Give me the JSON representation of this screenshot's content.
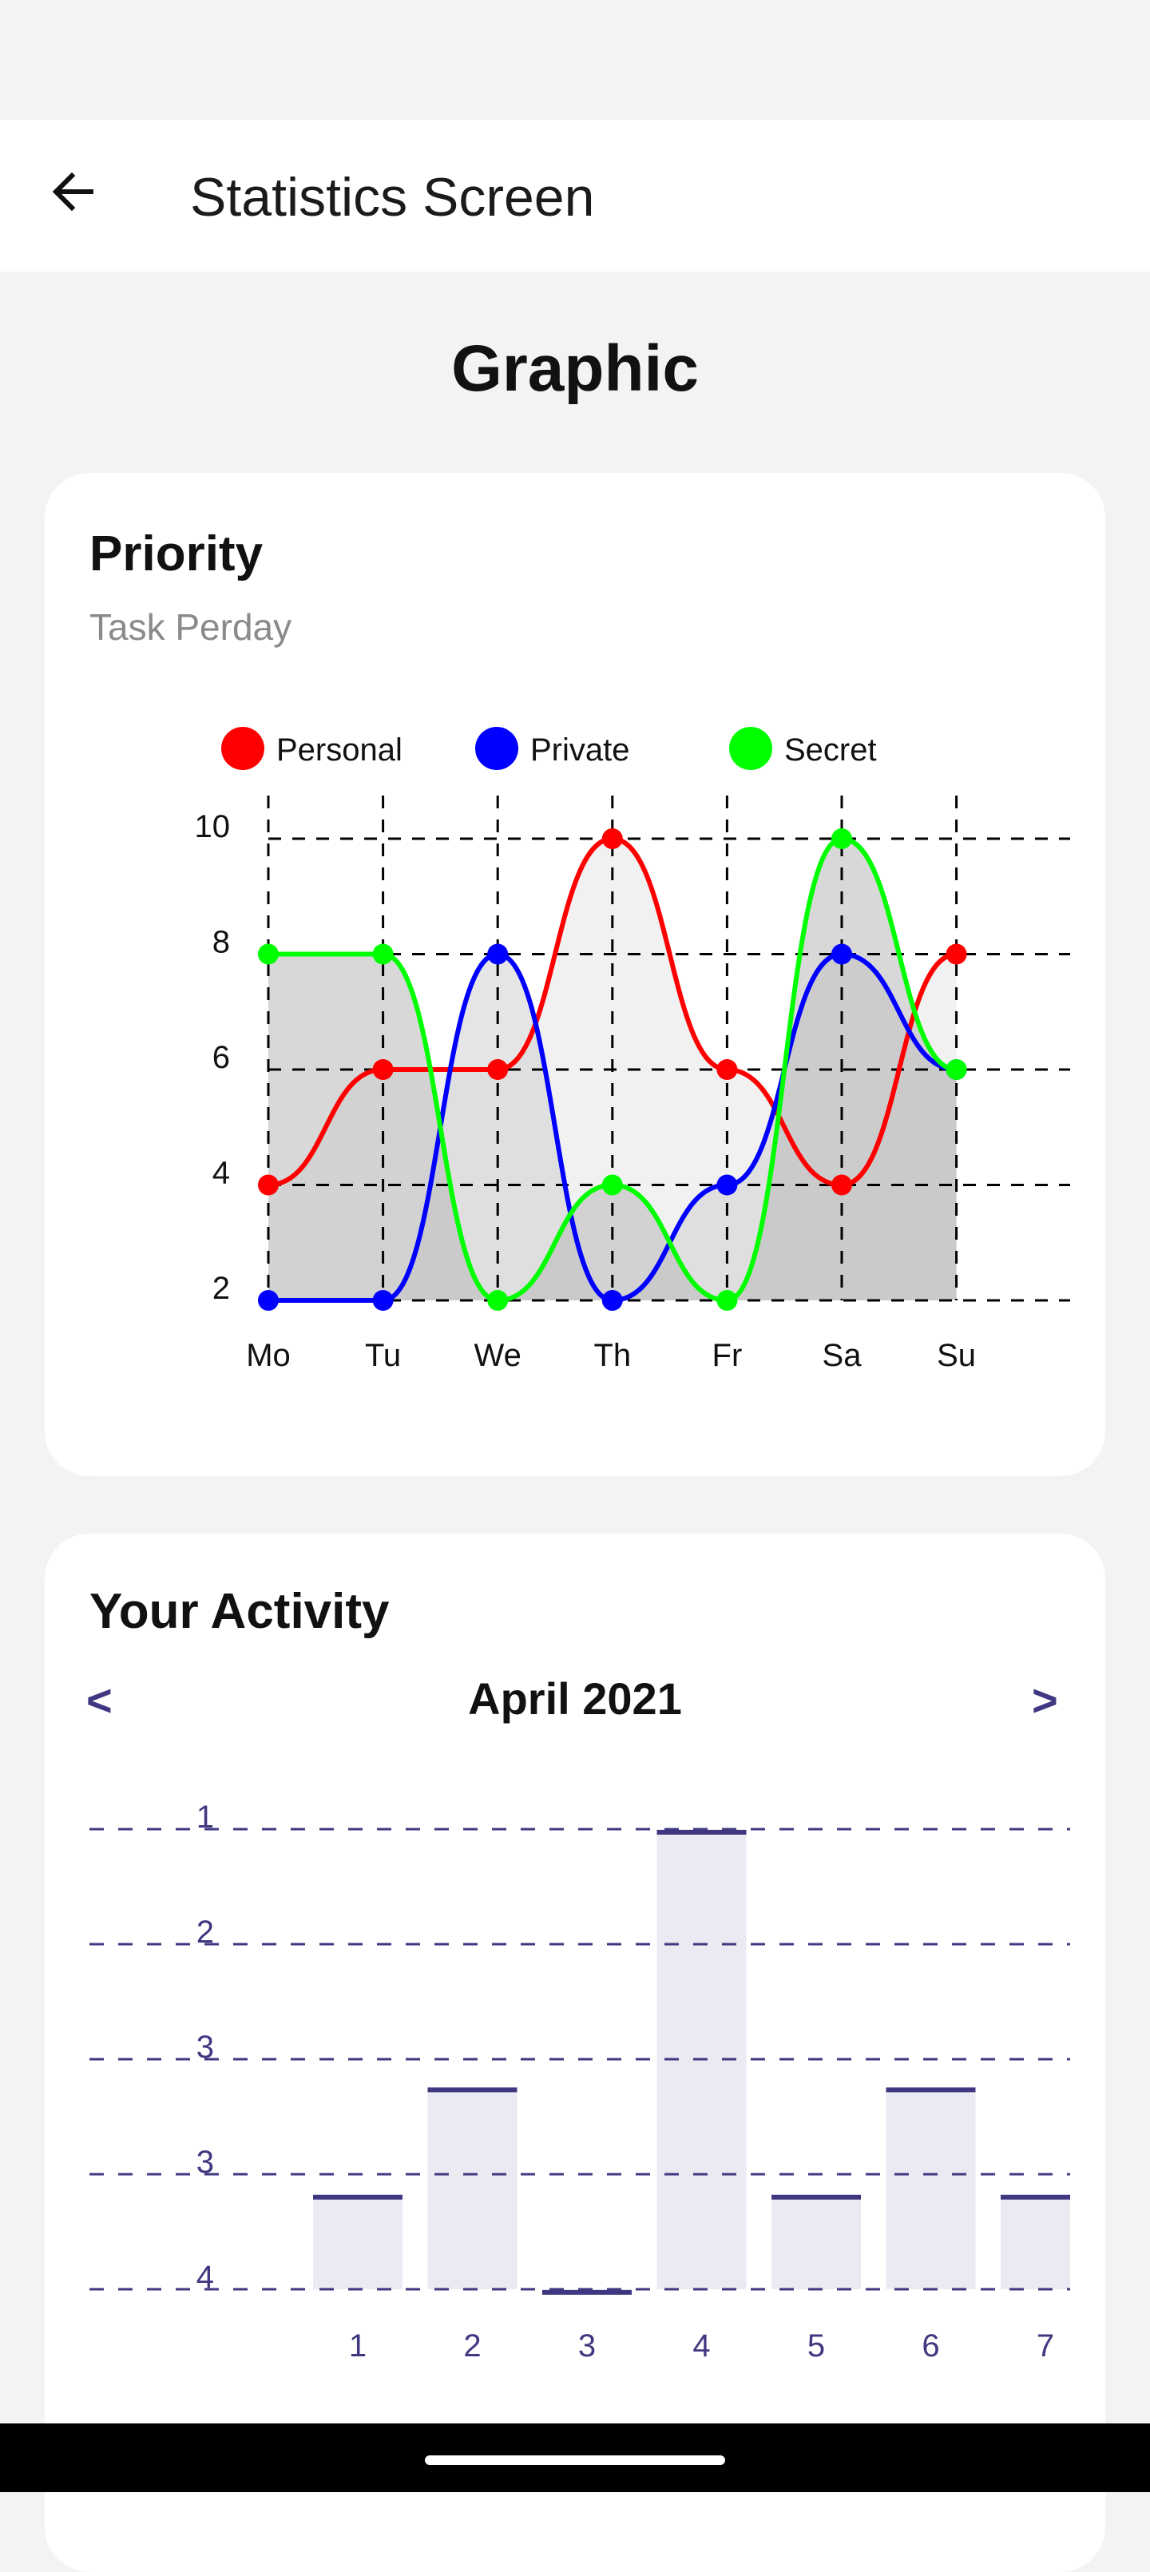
{
  "app_bar": {
    "title": "Statistics Screen",
    "back_icon": "arrow-left-icon"
  },
  "section_title": "Graphic",
  "priority_card": {
    "title": "Priority",
    "subtitle": "Task Perday",
    "chart_data": {
      "type": "line",
      "categories": [
        "Mo",
        "Tu",
        "We",
        "Th",
        "Fr",
        "Sa",
        "Su"
      ],
      "y_ticks": [
        "2",
        "4",
        "6",
        "8",
        "10"
      ],
      "ylim": [
        2,
        10
      ],
      "grid": true,
      "legend_position": "top",
      "series": [
        {
          "name": "Personal",
          "color": "#ff0000",
          "values": [
            4,
            6,
            6,
            10,
            6,
            4,
            8
          ]
        },
        {
          "name": "Private",
          "color": "#0000ff",
          "values": [
            2,
            2,
            8,
            2,
            4,
            8,
            6
          ]
        },
        {
          "name": "Secret",
          "color": "#00ff00",
          "values": [
            8,
            8,
            2,
            4,
            2,
            10,
            6
          ]
        }
      ]
    }
  },
  "activity_card": {
    "title": "Your Activity",
    "prev_label": "<",
    "next_label": ">",
    "month": "April 2021",
    "chart_data": {
      "type": "bar",
      "categories": [
        "1",
        "2",
        "3",
        "4",
        "5",
        "6",
        "7"
      ],
      "y_ticks": [
        "1",
        "2",
        "3",
        "3",
        "4"
      ],
      "values": [
        1.6,
        2.3,
        0.98,
        3.98,
        1.6,
        2.3,
        1.6
      ],
      "ylim": [
        1,
        4
      ],
      "grid": true,
      "bar_color": "#ebe9f2",
      "accent_color": "#3f3880"
    }
  }
}
